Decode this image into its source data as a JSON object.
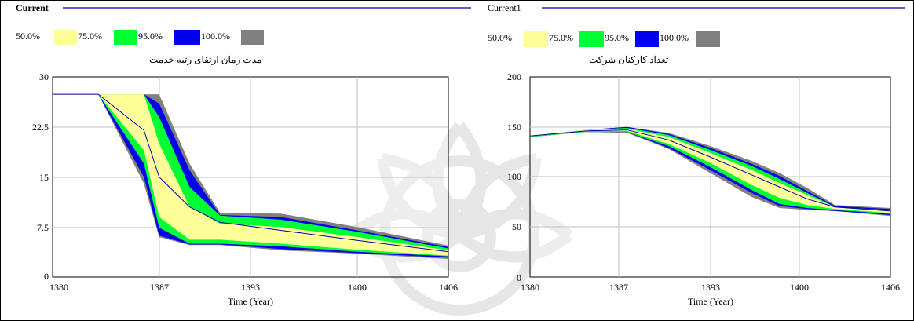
{
  "colors": {
    "band_50": "#ffff99",
    "band_75": "#00ff33",
    "band_95": "#0000ee",
    "band_100": "#808080",
    "mean_line": "#0000aa",
    "header_line": "#000099",
    "watermark": "#e6e6e6"
  },
  "chart_data": [
    {
      "type": "area",
      "title": "Current",
      "ylabel": "مدت زمان ارتقای رتبه خدمت",
      "xlabel": "Time (Year)",
      "xlim": [
        1380,
        1406
      ],
      "ylim": [
        0,
        30
      ],
      "x_ticks": [
        "1380",
        "1387",
        "1393",
        "1400",
        "1406"
      ],
      "y_ticks": [
        "0",
        "7.5",
        "15",
        "22.5",
        "30"
      ],
      "grid": true,
      "legend": [
        {
          "label": "50.0%",
          "color_key": "band_50"
        },
        {
          "label": "75.0%",
          "color_key": "band_75"
        },
        {
          "label": "95.0%",
          "color_key": "band_95"
        },
        {
          "label": "100.0%",
          "color_key": "band_100"
        }
      ],
      "x": [
        1380,
        1383,
        1386,
        1387,
        1389,
        1391,
        1395,
        1400,
        1406
      ],
      "mean": [
        27.4,
        27.4,
        22,
        15,
        10.5,
        8.2,
        7,
        5.5,
        3.8
      ],
      "band_100": {
        "lower": [
          27.4,
          27.4,
          14,
          6,
          4.8,
          4.8,
          4,
          3.5,
          2.7
        ],
        "upper": [
          27.4,
          27.4,
          27.4,
          27.4,
          17,
          9.6,
          9.5,
          7.5,
          4.7
        ]
      },
      "band_95": {
        "lower": [
          27.4,
          27.4,
          15,
          6.2,
          4.9,
          4.9,
          4.2,
          3.6,
          2.9
        ],
        "upper": [
          27.4,
          27.4,
          27.4,
          26,
          16,
          9.3,
          9,
          7,
          4.5
        ]
      },
      "band_75": {
        "lower": [
          27.4,
          27.4,
          17,
          7.4,
          5,
          5,
          4.6,
          3.8,
          3.1
        ],
        "upper": [
          27.4,
          27.4,
          27.4,
          24,
          13.5,
          9.2,
          8.6,
          6.8,
          4.3
        ]
      },
      "band_50": {
        "lower": [
          27.4,
          27.4,
          19,
          9,
          5.6,
          5.6,
          5,
          4.1,
          3.2
        ],
        "upper": [
          27.4,
          27.4,
          27.4,
          20,
          10.5,
          8,
          7.5,
          6,
          4
        ]
      }
    },
    {
      "type": "area",
      "title": "Current1",
      "ylabel": "تعداد کارکنان شرکت",
      "xlabel": "Time (Year)",
      "xlim": [
        1380,
        1406
      ],
      "ylim": [
        0,
        200
      ],
      "x_ticks": [
        "1380",
        "1387",
        "1393",
        "1400",
        "1406"
      ],
      "y_ticks": [
        "0",
        "50",
        "100",
        "150",
        "200"
      ],
      "grid": true,
      "legend": [
        {
          "label": "50.0%",
          "color_key": "band_50"
        },
        {
          "label": "75.0%",
          "color_key": "band_75"
        },
        {
          "label": "95.0%",
          "color_key": "band_95"
        },
        {
          "label": "100.0%",
          "color_key": "band_100"
        }
      ],
      "x": [
        1380,
        1384,
        1387,
        1390,
        1393,
        1396,
        1398,
        1400,
        1402,
        1406
      ],
      "mean": [
        141,
        146,
        147,
        137,
        120,
        102,
        90,
        78,
        70,
        66
      ],
      "band_100": {
        "lower": [
          140,
          145,
          144,
          128,
          104,
          80,
          69,
          67,
          66,
          61
        ],
        "upper": [
          141,
          147,
          150,
          144,
          131,
          116,
          104,
          89,
          72,
          69
        ]
      },
      "band_95": {
        "lower": [
          140,
          145,
          145,
          129,
          107,
          84,
          71,
          68,
          66,
          62
        ],
        "upper": [
          141,
          147,
          150,
          143,
          129,
          113,
          101,
          86,
          71,
          68
        ]
      },
      "band_75": {
        "lower": [
          140,
          145,
          145,
          131,
          110,
          87,
          73,
          69,
          67,
          63
        ],
        "upper": [
          141,
          147,
          149,
          142,
          127,
          111,
          98,
          84,
          70,
          67
        ]
      },
      "band_50": {
        "lower": [
          140.5,
          146,
          146,
          133,
          114,
          92,
          79,
          72,
          68,
          64
        ],
        "upper": [
          141,
          147,
          148,
          140,
          124,
          107,
          94,
          82,
          70,
          66
        ]
      }
    }
  ]
}
